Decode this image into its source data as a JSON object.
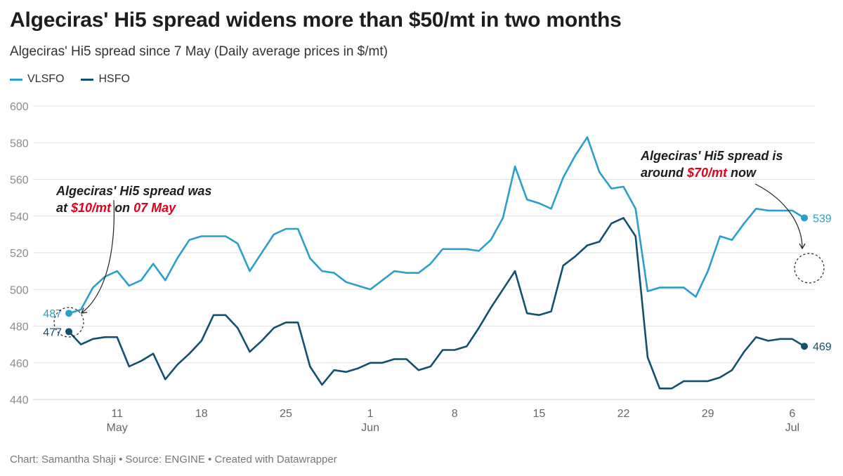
{
  "header": {
    "title": "Algeciras' Hi5 spread widens more than $50/mt in two months",
    "subtitle": "Algeciras' Hi5 spread since 7 May (Daily average prices in $/mt)"
  },
  "footer": {
    "credit": "Chart: Samantha Shaji • Source: ENGINE • Created with Datawrapper"
  },
  "colors": {
    "vlsfo": "#2a9fcc",
    "hsfo": "#12506f",
    "highlight": "#e3001b",
    "grid": "#e2e2e2"
  },
  "chart_data": {
    "type": "line",
    "x_start": "2024-05-07",
    "x_end": "2024-07-07",
    "ylim": [
      440,
      600
    ],
    "yticks": [
      440,
      460,
      480,
      500,
      520,
      540,
      560,
      580,
      600
    ],
    "grid": true,
    "legend_position": "top-left",
    "x_ticks": [
      {
        "date": "2024-05-11",
        "label": "11",
        "sublabel": "May"
      },
      {
        "date": "2024-05-18",
        "label": "18",
        "sublabel": ""
      },
      {
        "date": "2024-05-25",
        "label": "25",
        "sublabel": ""
      },
      {
        "date": "2024-06-01",
        "label": "1",
        "sublabel": "Jun"
      },
      {
        "date": "2024-06-08",
        "label": "8",
        "sublabel": ""
      },
      {
        "date": "2024-06-15",
        "label": "15",
        "sublabel": ""
      },
      {
        "date": "2024-06-22",
        "label": "22",
        "sublabel": ""
      },
      {
        "date": "2024-06-29",
        "label": "29",
        "sublabel": ""
      },
      {
        "date": "2024-07-06",
        "label": "6",
        "sublabel": "Jul"
      }
    ],
    "series": [
      {
        "name": "VLSFO",
        "color": "#2a9fcc",
        "end_label": "539",
        "start_label": "487",
        "points": [
          [
            "2024-05-07",
            487
          ],
          [
            "2024-05-08",
            489
          ],
          [
            "2024-05-09",
            501
          ],
          [
            "2024-05-10",
            507
          ],
          [
            "2024-05-11",
            510
          ],
          [
            "2024-05-12",
            502
          ],
          [
            "2024-05-13",
            505
          ],
          [
            "2024-05-14",
            514
          ],
          [
            "2024-05-15",
            505
          ],
          [
            "2024-05-16",
            517
          ],
          [
            "2024-05-17",
            527
          ],
          [
            "2024-05-18",
            529
          ],
          [
            "2024-05-19",
            529
          ],
          [
            "2024-05-20",
            529
          ],
          [
            "2024-05-21",
            525
          ],
          [
            "2024-05-22",
            510
          ],
          [
            "2024-05-23",
            520
          ],
          [
            "2024-05-24",
            530
          ],
          [
            "2024-05-25",
            533
          ],
          [
            "2024-05-26",
            533
          ],
          [
            "2024-05-27",
            517
          ],
          [
            "2024-05-28",
            510
          ],
          [
            "2024-05-29",
            509
          ],
          [
            "2024-05-30",
            504
          ],
          [
            "2024-05-31",
            502
          ],
          [
            "2024-06-01",
            500
          ],
          [
            "2024-06-02",
            505
          ],
          [
            "2024-06-03",
            510
          ],
          [
            "2024-06-04",
            509
          ],
          [
            "2024-06-05",
            509
          ],
          [
            "2024-06-06",
            514
          ],
          [
            "2024-06-07",
            522
          ],
          [
            "2024-06-08",
            522
          ],
          [
            "2024-06-09",
            522
          ],
          [
            "2024-06-10",
            521
          ],
          [
            "2024-06-11",
            527
          ],
          [
            "2024-06-12",
            539
          ],
          [
            "2024-06-13",
            567
          ],
          [
            "2024-06-14",
            549
          ],
          [
            "2024-06-15",
            547
          ],
          [
            "2024-06-16",
            544
          ],
          [
            "2024-06-17",
            561
          ],
          [
            "2024-06-18",
            573
          ],
          [
            "2024-06-19",
            583
          ],
          [
            "2024-06-20",
            564
          ],
          [
            "2024-06-21",
            555
          ],
          [
            "2024-06-22",
            556
          ],
          [
            "2024-06-23",
            544
          ],
          [
            "2024-06-24",
            499
          ],
          [
            "2024-06-25",
            501
          ],
          [
            "2024-06-26",
            501
          ],
          [
            "2024-06-27",
            501
          ],
          [
            "2024-06-28",
            496
          ],
          [
            "2024-06-29",
            510
          ],
          [
            "2024-06-30",
            529
          ],
          [
            "2024-07-01",
            527
          ],
          [
            "2024-07-02",
            536
          ],
          [
            "2024-07-03",
            544
          ],
          [
            "2024-07-04",
            543
          ],
          [
            "2024-07-05",
            543
          ],
          [
            "2024-07-06",
            543
          ],
          [
            "2024-07-07",
            539
          ]
        ]
      },
      {
        "name": "HSFO",
        "color": "#12506f",
        "end_label": "469",
        "start_label": "477",
        "points": [
          [
            "2024-05-07",
            477
          ],
          [
            "2024-05-08",
            470
          ],
          [
            "2024-05-09",
            473
          ],
          [
            "2024-05-10",
            474
          ],
          [
            "2024-05-11",
            474
          ],
          [
            "2024-05-12",
            458
          ],
          [
            "2024-05-13",
            461
          ],
          [
            "2024-05-14",
            465
          ],
          [
            "2024-05-15",
            451
          ],
          [
            "2024-05-16",
            459
          ],
          [
            "2024-05-17",
            465
          ],
          [
            "2024-05-18",
            472
          ],
          [
            "2024-05-19",
            486
          ],
          [
            "2024-05-20",
            486
          ],
          [
            "2024-05-21",
            479
          ],
          [
            "2024-05-22",
            466
          ],
          [
            "2024-05-23",
            472
          ],
          [
            "2024-05-24",
            479
          ],
          [
            "2024-05-25",
            482
          ],
          [
            "2024-05-26",
            482
          ],
          [
            "2024-05-27",
            458
          ],
          [
            "2024-05-28",
            448
          ],
          [
            "2024-05-29",
            456
          ],
          [
            "2024-05-30",
            455
          ],
          [
            "2024-05-31",
            457
          ],
          [
            "2024-06-01",
            460
          ],
          [
            "2024-06-02",
            460
          ],
          [
            "2024-06-03",
            462
          ],
          [
            "2024-06-04",
            462
          ],
          [
            "2024-06-05",
            456
          ],
          [
            "2024-06-06",
            458
          ],
          [
            "2024-06-07",
            467
          ],
          [
            "2024-06-08",
            467
          ],
          [
            "2024-06-09",
            469
          ],
          [
            "2024-06-10",
            479
          ],
          [
            "2024-06-11",
            490
          ],
          [
            "2024-06-12",
            500
          ],
          [
            "2024-06-13",
            510
          ],
          [
            "2024-06-14",
            487
          ],
          [
            "2024-06-15",
            486
          ],
          [
            "2024-06-16",
            488
          ],
          [
            "2024-06-17",
            513
          ],
          [
            "2024-06-18",
            518
          ],
          [
            "2024-06-19",
            524
          ],
          [
            "2024-06-20",
            526
          ],
          [
            "2024-06-21",
            536
          ],
          [
            "2024-06-22",
            539
          ],
          [
            "2024-06-23",
            529
          ],
          [
            "2024-06-24",
            463
          ],
          [
            "2024-06-25",
            446
          ],
          [
            "2024-06-26",
            446
          ],
          [
            "2024-06-27",
            450
          ],
          [
            "2024-06-28",
            450
          ],
          [
            "2024-06-29",
            450
          ],
          [
            "2024-06-30",
            452
          ],
          [
            "2024-07-01",
            456
          ],
          [
            "2024-07-02",
            466
          ],
          [
            "2024-07-03",
            474
          ],
          [
            "2024-07-04",
            472
          ],
          [
            "2024-07-05",
            473
          ],
          [
            "2024-07-06",
            473
          ],
          [
            "2024-07-07",
            469
          ]
        ]
      }
    ],
    "annotations": [
      {
        "id": "start",
        "date": "2024-05-07",
        "line1_parts": [
          "Algeciras' Hi5 spread was"
        ],
        "line2_parts": [
          "at ",
          "$10/mt",
          " on ",
          "07 May"
        ],
        "line2_highlight": [
          false,
          true,
          false,
          true
        ]
      },
      {
        "id": "end",
        "date": "2024-07-07",
        "line1_parts": [
          "Algeciras' Hi5 spread is"
        ],
        "line2_parts": [
          "around ",
          "$70/mt",
          " now"
        ],
        "line2_highlight": [
          false,
          true,
          false
        ]
      }
    ]
  }
}
